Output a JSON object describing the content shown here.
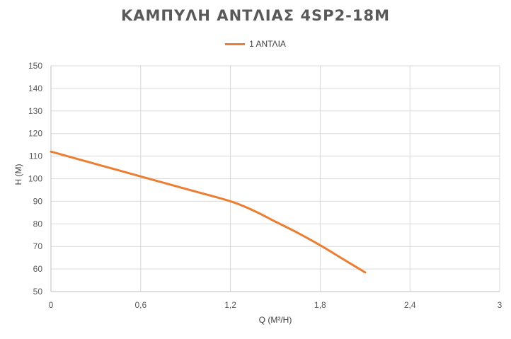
{
  "chart_data": {
    "type": "line",
    "title": "ΚΑΜΠΥΛΗ ΑΝΤΛΙΑΣ 4SP2-18M",
    "xlabel": "Q (M³/H)",
    "ylabel": "H (M)",
    "xlim": [
      0,
      3
    ],
    "ylim": [
      50,
      150
    ],
    "x_ticks": [
      0,
      0.6,
      1.2,
      1.8,
      2.4,
      3
    ],
    "x_tick_labels": [
      "0",
      "0,6",
      "1,2",
      "1,8",
      "2,4",
      "3"
    ],
    "y_ticks": [
      50,
      60,
      70,
      80,
      90,
      100,
      110,
      120,
      130,
      140,
      150
    ],
    "y_tick_labels": [
      "50",
      "60",
      "70",
      "80",
      "90",
      "100",
      "110",
      "120",
      "130",
      "140",
      "150"
    ],
    "grid": true,
    "legend_position": "top",
    "series": [
      {
        "name": "1 ΑΝΤΛΙΑ",
        "color": "#ED7D31",
        "x": [
          0,
          0.3,
          0.6,
          0.9,
          1.2,
          1.35,
          1.5,
          1.65,
          1.8,
          1.95,
          2.1
        ],
        "y": [
          112,
          106.5,
          101,
          95.5,
          90,
          86,
          81,
          76,
          70.5,
          64.5,
          58.5
        ]
      }
    ]
  }
}
